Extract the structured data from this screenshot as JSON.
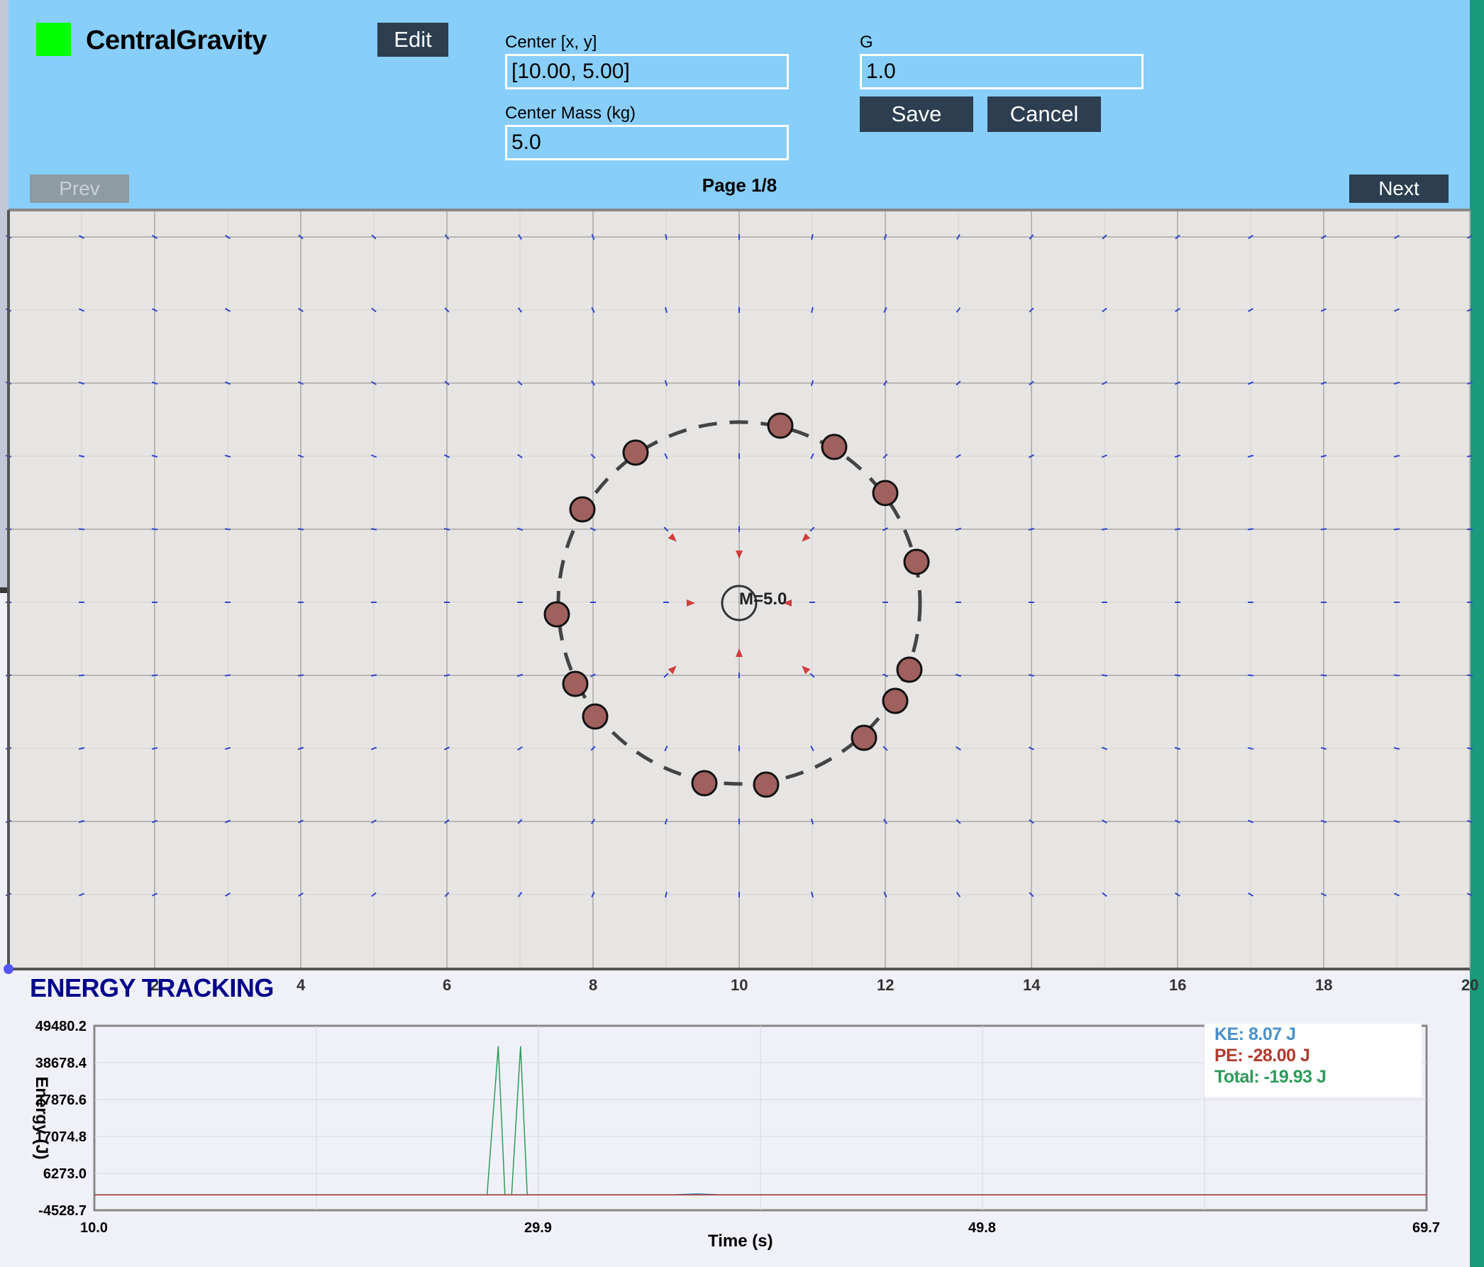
{
  "app": {
    "title": "CentralGravity",
    "swatch_color": "#00ff00",
    "edit_label": "Edit"
  },
  "form": {
    "center_label": "Center [x, y]",
    "center_value": "[10.00, 5.00]",
    "mass_label": "Center Mass (kg)",
    "mass_value": "5.0",
    "g_label": "G",
    "g_value": "1.0",
    "save_label": "Save",
    "cancel_label": "Cancel"
  },
  "pager": {
    "prev_label": "Prev",
    "next_label": "Next",
    "page_text": "Page 1/8"
  },
  "simulation": {
    "center_label": "M=5.0",
    "x_ticks": [
      "2",
      "4",
      "6",
      "8",
      "10",
      "12",
      "14",
      "16",
      "18",
      "20"
    ],
    "particle_color": "#a0605e",
    "orbit_color": "#444444",
    "arrow_color": "#cc2222",
    "field_color": "#3344cc"
  },
  "energy": {
    "title": "ENERGY TRACKING",
    "ylabel": "Energy (J)",
    "xlabel": "Time (s)",
    "y_ticks": [
      "49480.2",
      "38678.4",
      "27876.6",
      "17074.8",
      "6273.0",
      "-4528.7"
    ],
    "x_ticks": [
      "10.0",
      "29.9",
      "49.8",
      "69.7"
    ],
    "ke_text": "KE: 8.07 J",
    "pe_text": "PE: -28.00 J",
    "total_text": "Total: -19.93 J",
    "ke_color": "#4a90c8",
    "pe_color": "#b03a2e",
    "total_color": "#2e9a5a"
  },
  "chart_data": {
    "type": "line",
    "xlabel": "Time (s)",
    "ylabel": "Energy (J)",
    "xlim": [
      10.0,
      69.7
    ],
    "ylim": [
      -4528.7,
      49480.2
    ],
    "series": [
      {
        "name": "Total",
        "x": [
          10.0,
          27.6,
          28.1,
          28.4,
          28.7,
          29.1,
          29.4,
          29.8,
          69.7
        ],
        "values": [
          -19.93,
          -19.93,
          43500,
          -19.93,
          -19.93,
          43500,
          -19.93,
          -19.93,
          -19.93
        ]
      },
      {
        "name": "KE",
        "x": [
          10.0,
          36.0,
          37.0,
          38.0,
          69.7
        ],
        "values": [
          8.07,
          8.07,
          300,
          8.07,
          8.07
        ]
      },
      {
        "name": "PE",
        "x": [
          10.0,
          69.7
        ],
        "values": [
          -28.0,
          -28.0
        ]
      }
    ]
  }
}
